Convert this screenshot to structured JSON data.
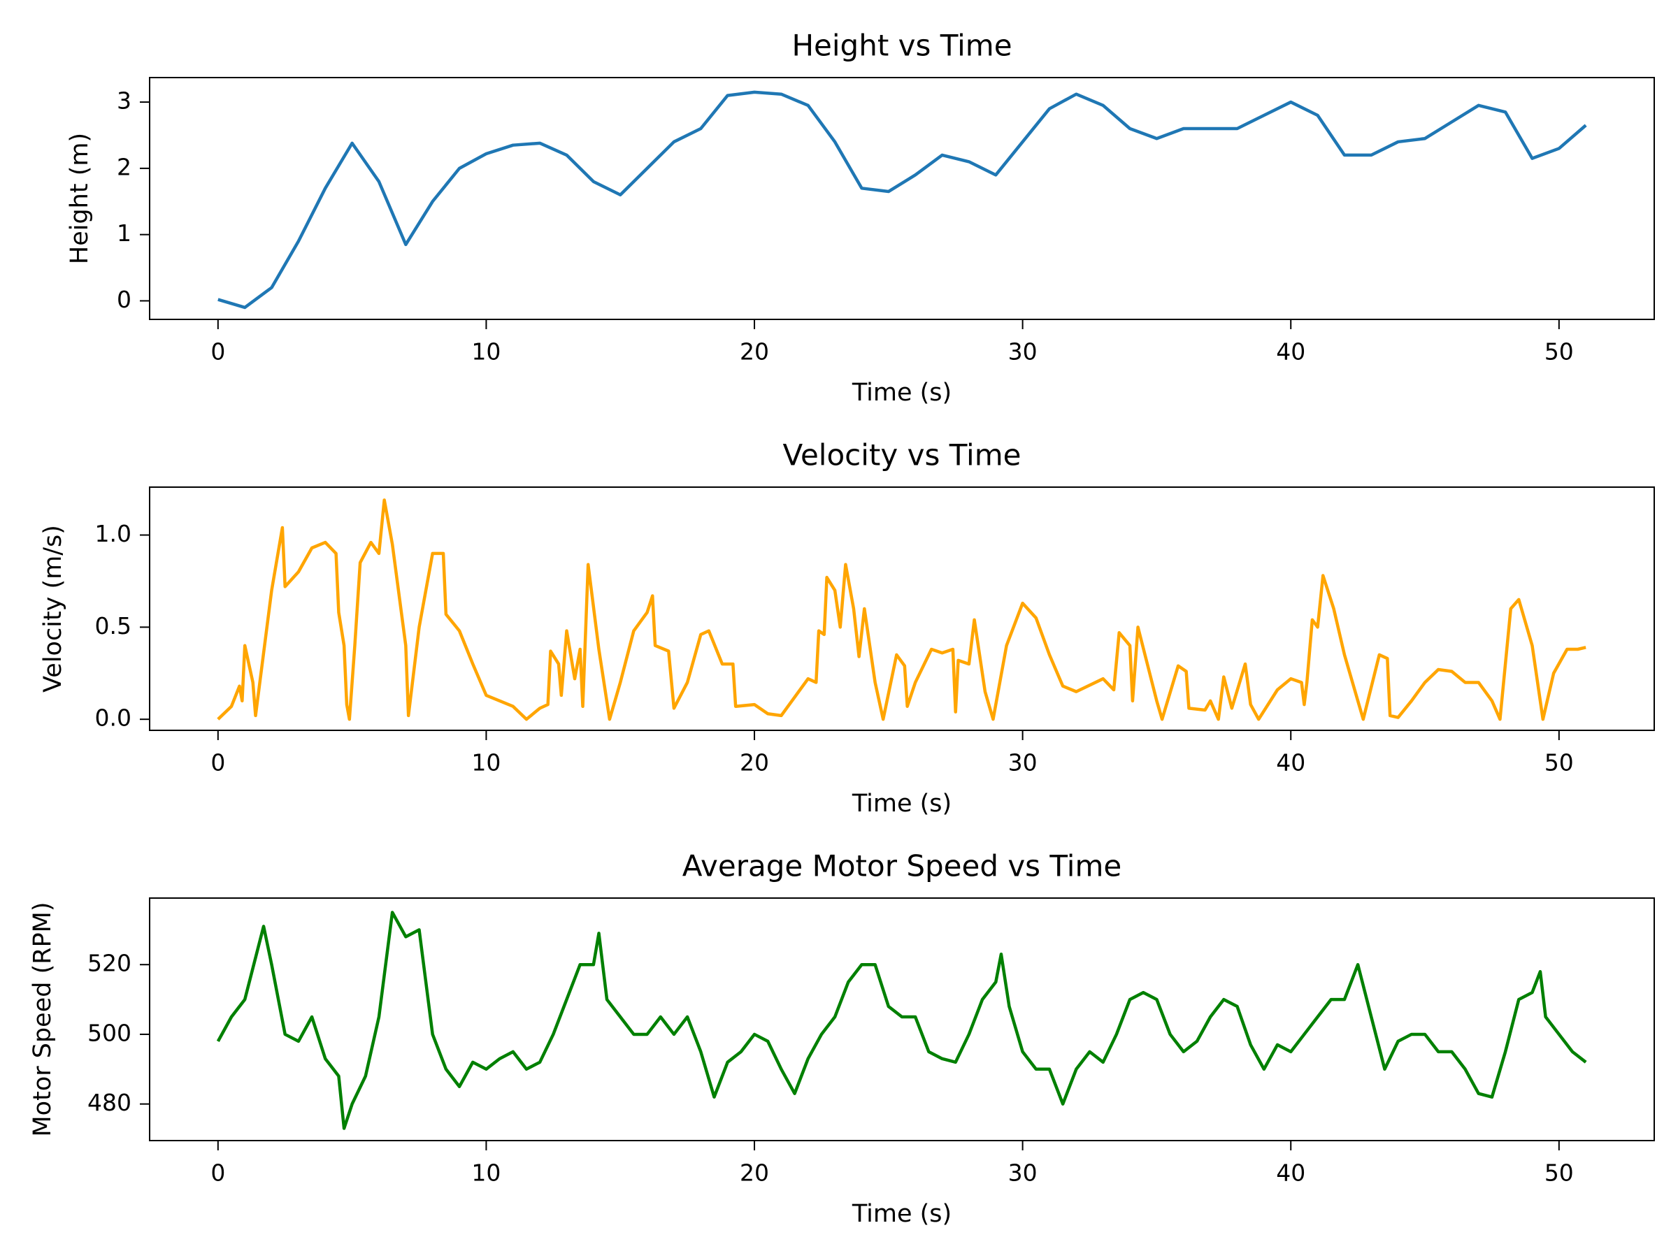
{
  "chart_data": [
    {
      "type": "line",
      "title": "Height vs Time",
      "xlabel": "Time (s)",
      "ylabel": "Height (m)",
      "color": "#1f77b4",
      "x": [
        0,
        1,
        2,
        3,
        4,
        5,
        6,
        7,
        8,
        9,
        10,
        11,
        12,
        13,
        14,
        15,
        16,
        17,
        18,
        19,
        20,
        21,
        22,
        23,
        24,
        25,
        26,
        27,
        28,
        29,
        30,
        31,
        32,
        33,
        34,
        35,
        36,
        37,
        38,
        39,
        40,
        41,
        42,
        43,
        44,
        45,
        46,
        47,
        48,
        49,
        50,
        51
      ],
      "values": [
        0.02,
        -0.1,
        0.2,
        0.9,
        1.7,
        2.38,
        1.8,
        0.85,
        1.5,
        2.0,
        2.22,
        2.35,
        2.38,
        2.2,
        1.8,
        1.6,
        2.0,
        2.4,
        2.6,
        3.1,
        3.15,
        3.12,
        2.95,
        2.4,
        1.7,
        1.65,
        1.9,
        2.2,
        2.1,
        1.9,
        2.4,
        2.9,
        3.12,
        2.95,
        2.6,
        2.45,
        2.6,
        2.6,
        2.6,
        2.8,
        3.0,
        2.8,
        2.2,
        2.2,
        2.4,
        2.45,
        2.7,
        2.95,
        2.85,
        2.15,
        2.3,
        2.65
      ],
      "xlim": [
        -2.55,
        53.55
      ],
      "ylim": [
        -0.28,
        3.37
      ],
      "xticks": [
        0,
        10,
        20,
        30,
        40,
        50
      ],
      "yticks": [
        0,
        1,
        2,
        3
      ]
    },
    {
      "type": "line",
      "title": "Velocity vs Time",
      "xlabel": "Time (s)",
      "ylabel": "Velocity (m/s)",
      "color": "#ffa500",
      "x": [
        0,
        0.5,
        0.8,
        0.9,
        1,
        1.3,
        1.4,
        2,
        2.4,
        2.5,
        3,
        3.5,
        4,
        4.4,
        4.5,
        4.7,
        4.8,
        4.9,
        5.1,
        5.3,
        5.7,
        6,
        6.2,
        6.5,
        7,
        7.1,
        7.5,
        8,
        8.4,
        8.5,
        9,
        9.5,
        10,
        11,
        11.5,
        12,
        12.3,
        12.4,
        12.7,
        12.8,
        13,
        13.3,
        13.5,
        13.6,
        13.8,
        14.2,
        14.6,
        15,
        15.5,
        16,
        16.2,
        16.3,
        16.8,
        17,
        17.5,
        18,
        18.3,
        18.8,
        19.2,
        19.3,
        20,
        20.5,
        21,
        21.5,
        22,
        22.3,
        22.4,
        22.6,
        22.7,
        23,
        23.2,
        23.4,
        23.7,
        23.9,
        24.1,
        24.5,
        24.8,
        25.3,
        25.6,
        25.7,
        26,
        26.6,
        27,
        27.4,
        27.5,
        27.6,
        28,
        28.2,
        28.6,
        28.9,
        29.4,
        30,
        30.5,
        31,
        31.5,
        32,
        33,
        33.4,
        33.6,
        34,
        34.1,
        34.3,
        35,
        35.2,
        35.8,
        36.1,
        36.2,
        36.8,
        37,
        37.3,
        37.5,
        37.8,
        38.3,
        38.5,
        38.8,
        39.5,
        40,
        40.4,
        40.5,
        40.6,
        40.8,
        41,
        41.2,
        41.6,
        42,
        42.7,
        43.3,
        43.6,
        43.7,
        44,
        44.5,
        45,
        45.5,
        46,
        46.5,
        47,
        47.5,
        47.8,
        48.2,
        48.5,
        49,
        49.4,
        49.8,
        50.3,
        50.7,
        51
      ],
      "values": [
        0,
        0.07,
        0.18,
        0.1,
        0.4,
        0.2,
        0.02,
        0.7,
        1.04,
        0.72,
        0.8,
        0.93,
        0.96,
        0.9,
        0.58,
        0.4,
        0.08,
        0,
        0.4,
        0.85,
        0.96,
        0.9,
        1.19,
        0.95,
        0.4,
        0.02,
        0.5,
        0.9,
        0.9,
        0.57,
        0.48,
        0.3,
        0.13,
        0.07,
        0,
        0.06,
        0.08,
        0.37,
        0.3,
        0.13,
        0.48,
        0.22,
        0.38,
        0.07,
        0.84,
        0.38,
        0,
        0.2,
        0.48,
        0.58,
        0.67,
        0.4,
        0.37,
        0.06,
        0.2,
        0.46,
        0.48,
        0.3,
        0.3,
        0.07,
        0.08,
        0.03,
        0.02,
        0.12,
        0.22,
        0.2,
        0.48,
        0.46,
        0.77,
        0.7,
        0.5,
        0.84,
        0.6,
        0.34,
        0.6,
        0.2,
        0,
        0.35,
        0.29,
        0.07,
        0.2,
        0.38,
        0.36,
        0.38,
        0.04,
        0.32,
        0.3,
        0.54,
        0.15,
        0,
        0.4,
        0.63,
        0.55,
        0.35,
        0.18,
        0.15,
        0.22,
        0.16,
        0.47,
        0.4,
        0.1,
        0.5,
        0.1,
        0,
        0.29,
        0.26,
        0.06,
        0.05,
        0.1,
        0,
        0.23,
        0.06,
        0.3,
        0.08,
        0,
        0.16,
        0.22,
        0.2,
        0.08,
        0.2,
        0.54,
        0.5,
        0.78,
        0.6,
        0.35,
        0,
        0.35,
        0.33,
        0.02,
        0.01,
        0.1,
        0.2,
        0.27,
        0.26,
        0.2,
        0.2,
        0.1,
        0,
        0.6,
        0.65,
        0.4,
        0,
        0.25,
        0.38,
        0.38,
        0.39
      ],
      "xlim": [
        -2.55,
        53.55
      ],
      "ylim": [
        -0.06,
        1.26
      ],
      "xticks": [
        0,
        10,
        20,
        30,
        40,
        50
      ],
      "yticks": [
        {
          "value": 0,
          "label": "0.0"
        },
        {
          "value": 0.5,
          "label": "0.5"
        },
        {
          "value": 1,
          "label": "1.0"
        }
      ]
    },
    {
      "type": "line",
      "title": "Average Motor Speed vs Time",
      "xlabel": "Time (s)",
      "ylabel": "Motor Speed (RPM)",
      "color": "#008000",
      "x": [
        0,
        0.5,
        1,
        1.5,
        1.7,
        2,
        2.5,
        3,
        3.5,
        4,
        4.5,
        4.7,
        5,
        5.5,
        6,
        6.5,
        7,
        7.5,
        8,
        8.5,
        9,
        9.5,
        10,
        10.5,
        11,
        11.5,
        12,
        12.5,
        13,
        13.5,
        14,
        14.2,
        14.5,
        15,
        15.5,
        16,
        16.5,
        17,
        17.5,
        18,
        18.5,
        19,
        19.5,
        20,
        20.5,
        21,
        21.5,
        22,
        22.5,
        23,
        23.5,
        24,
        24.5,
        25,
        25.5,
        26,
        26.5,
        27,
        27.5,
        28,
        28.5,
        29,
        29.2,
        29.5,
        30,
        30.5,
        31,
        31.5,
        32,
        32.5,
        33,
        33.5,
        34,
        34.5,
        35,
        35.5,
        36,
        36.5,
        37,
        37.5,
        38,
        38.5,
        39,
        39.5,
        40,
        40.5,
        41,
        41.5,
        42,
        42.5,
        43,
        43.5,
        44,
        44.5,
        45,
        45.5,
        46,
        46.5,
        47,
        47.5,
        48,
        48.5,
        49,
        49.3,
        49.5,
        50,
        50.5,
        51
      ],
      "values": [
        498,
        505,
        510,
        525,
        531,
        520,
        500,
        498,
        505,
        493,
        488,
        473,
        480,
        488,
        505,
        535,
        528,
        530,
        500,
        490,
        485,
        492,
        490,
        493,
        495,
        490,
        492,
        500,
        510,
        520,
        520,
        529,
        510,
        505,
        500,
        500,
        505,
        500,
        505,
        495,
        482,
        492,
        495,
        500,
        498,
        490,
        483,
        493,
        500,
        505,
        515,
        520,
        520,
        508,
        505,
        505,
        495,
        493,
        492,
        500,
        510,
        515,
        523,
        508,
        495,
        490,
        490,
        480,
        490,
        495,
        492,
        500,
        510,
        512,
        510,
        500,
        495,
        498,
        505,
        510,
        508,
        497,
        490,
        497,
        495,
        500,
        505,
        510,
        510,
        520,
        505,
        490,
        498,
        500,
        500,
        495,
        495,
        490,
        483,
        482,
        495,
        510,
        512,
        518,
        505,
        500,
        495,
        492
      ],
      "xlim": [
        -2.55,
        53.55
      ],
      "ylim": [
        469.5,
        539.1
      ],
      "xticks": [
        0,
        10,
        20,
        30,
        40,
        50
      ],
      "yticks": [
        480,
        500,
        520
      ]
    }
  ]
}
